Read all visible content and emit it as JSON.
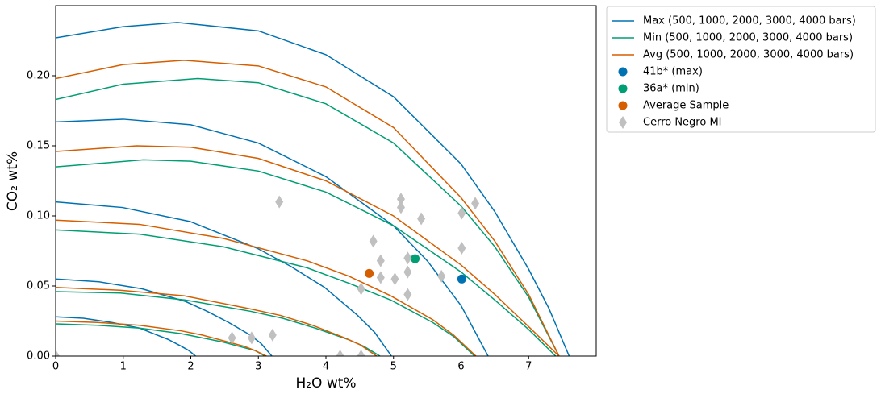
{
  "chart_data": {
    "type": "line",
    "xlabel": "H₂O wt%",
    "ylabel": "CO₂ wt%",
    "xlim": [
      0,
      8
    ],
    "ylim": [
      0,
      0.25
    ],
    "xticks": [
      0,
      1,
      2,
      3,
      4,
      5,
      6,
      7
    ],
    "yticks": [
      {
        "value": 0,
        "label": "0.00"
      },
      0.05,
      {
        "value": 0.1,
        "label": "0.10"
      },
      0.15,
      {
        "value": 0.2,
        "label": "0.20"
      }
    ],
    "legend": "outside upper right",
    "series": [
      {
        "name": "Max (500, 1000, 2000, 3000, 4000 bars)",
        "type": "line",
        "color": "#0072b2",
        "x": [
          0,
          0.41,
          0.83,
          1.24,
          1.45,
          1.66,
          1.86,
          1.97,
          2.07,
          null,
          0,
          0.64,
          1.28,
          1.92,
          2.24,
          2.56,
          2.88,
          3.04,
          3.2,
          null,
          0,
          0.99,
          1.99,
          2.98,
          3.48,
          3.98,
          4.47,
          4.72,
          4.97,
          null,
          0,
          1,
          2,
          3,
          4,
          5,
          5.5,
          6,
          6.4,
          null,
          0,
          1,
          1.8,
          3,
          4,
          5,
          6,
          6.5,
          7,
          7.3,
          7.6
        ],
        "values": [
          0.028,
          0.027,
          0.024,
          0.02,
          0.016,
          0.012,
          0.007,
          0.004,
          0,
          null,
          0.055,
          0.053,
          0.048,
          0.039,
          0.032,
          0.024,
          0.015,
          0.009,
          0,
          null,
          0.11,
          0.106,
          0.096,
          0.077,
          0.064,
          0.049,
          0.029,
          0.017,
          0,
          null,
          0.167,
          0.169,
          0.165,
          0.152,
          0.128,
          0.093,
          0.068,
          0.036,
          0,
          null,
          0.227,
          0.235,
          0.238,
          0.232,
          0.215,
          0.185,
          0.137,
          0.103,
          0.062,
          0.034,
          0
        ]
      },
      {
        "name": "Min (500, 1000, 2000, 3000, 4000 bars)",
        "type": "line",
        "color": "#009e73",
        "x": [
          0,
          0.62,
          1.24,
          1.86,
          2.17,
          2.48,
          2.79,
          2.95,
          3.1,
          null,
          0,
          0.96,
          1.92,
          2.88,
          3.36,
          3.84,
          4.32,
          4.56,
          4.8,
          null,
          0,
          1.24,
          2.48,
          3.72,
          4.34,
          4.96,
          5.58,
          5.89,
          6.2,
          null,
          0,
          1.3,
          2,
          3,
          4,
          5,
          6,
          6.5,
          7,
          7.4,
          null,
          0,
          1,
          2.1,
          3,
          4,
          5,
          6,
          6.5,
          7,
          7.45
        ],
        "values": [
          0.023,
          0.022,
          0.02,
          0.016,
          0.013,
          0.01,
          0.006,
          0.004,
          0,
          null,
          0.046,
          0.045,
          0.04,
          0.032,
          0.027,
          0.02,
          0.012,
          0.007,
          0,
          null,
          0.09,
          0.087,
          0.078,
          0.063,
          0.052,
          0.04,
          0.024,
          0.014,
          0,
          null,
          0.135,
          0.14,
          0.139,
          0.132,
          0.117,
          0.093,
          0.06,
          0.04,
          0.019,
          0,
          null,
          0.183,
          0.194,
          0.198,
          0.195,
          0.18,
          0.152,
          0.107,
          0.078,
          0.042,
          0
        ]
      },
      {
        "name": "Avg (500, 1000, 2000, 3000, 4000 bars)",
        "type": "line",
        "color": "#d55e00",
        "x": [
          0,
          0.62,
          1.24,
          1.86,
          2.17,
          2.48,
          2.79,
          2.95,
          3.12,
          null,
          0,
          0.95,
          1.9,
          2.85,
          3.33,
          3.8,
          4.28,
          4.51,
          4.75,
          null,
          0,
          1.24,
          2.48,
          3.72,
          4.34,
          4.96,
          5.58,
          5.89,
          6.22,
          null,
          0,
          1.2,
          2,
          3,
          4,
          5,
          6,
          6.5,
          7,
          7.45,
          null,
          0,
          1,
          1.9,
          3,
          4,
          5,
          6,
          6.5,
          7,
          7.45
        ],
        "values": [
          0.025,
          0.024,
          0.022,
          0.018,
          0.015,
          0.011,
          0.007,
          0.004,
          0,
          null,
          0.049,
          0.047,
          0.043,
          0.034,
          0.029,
          0.022,
          0.013,
          0.008,
          0,
          null,
          0.097,
          0.094,
          0.084,
          0.068,
          0.057,
          0.043,
          0.026,
          0.015,
          0,
          null,
          0.146,
          0.15,
          0.149,
          0.141,
          0.125,
          0.1,
          0.065,
          0.044,
          0.021,
          0,
          null,
          0.198,
          0.208,
          0.211,
          0.207,
          0.192,
          0.163,
          0.113,
          0.082,
          0.044,
          0
        ]
      },
      {
        "name": "41b* (max)",
        "type": "scatter",
        "marker": "circle",
        "color": "#0072b2",
        "x": [
          6.01
        ],
        "values": [
          0.055
        ]
      },
      {
        "name": "36a* (min)",
        "type": "scatter",
        "marker": "circle",
        "color": "#009e73",
        "x": [
          5.32
        ],
        "values": [
          0.0695
        ]
      },
      {
        "name": "Average Sample",
        "type": "scatter",
        "marker": "circle",
        "color": "#d55e00",
        "x": [
          4.64
        ],
        "values": [
          0.059
        ]
      },
      {
        "name": "Cerro Negro MI",
        "type": "scatter",
        "marker": "diamond",
        "color": "#c0c0c0",
        "x": [
          0,
          2.61,
          2.9,
          3.21,
          3.31,
          4.21,
          4.52,
          4.52,
          4.7,
          4.81,
          4.81,
          5.02,
          5.11,
          5.11,
          5.21,
          5.21,
          5.21,
          5.41,
          5.71,
          6.01,
          6.01,
          6.21
        ],
        "values": [
          0,
          0.013,
          0.013,
          0.015,
          0.11,
          0,
          0,
          0.048,
          0.082,
          0.068,
          0.056,
          0.055,
          0.112,
          0.106,
          0.07,
          0.06,
          0.044,
          0.098,
          0.057,
          0.102,
          0.077,
          0.109
        ]
      }
    ]
  }
}
